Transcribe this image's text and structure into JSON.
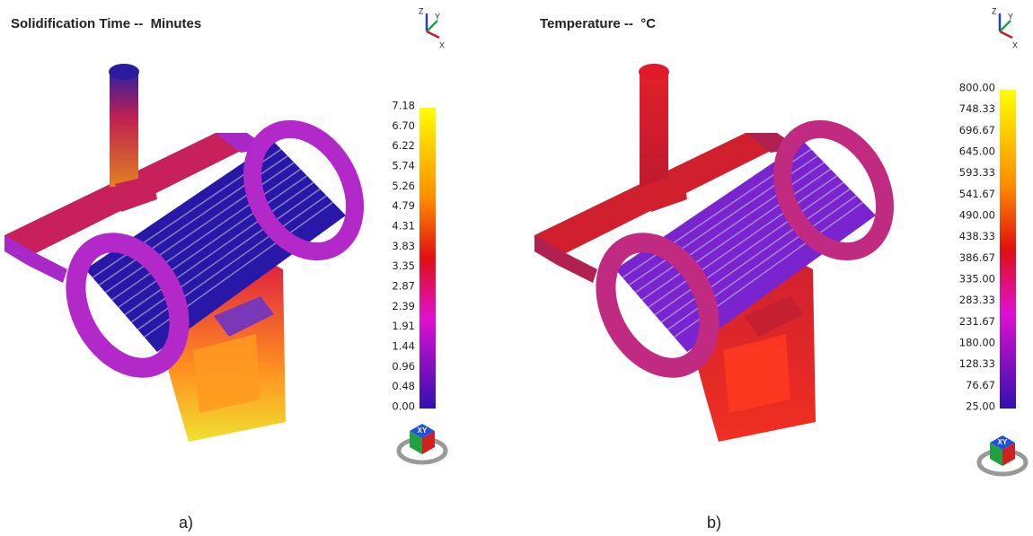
{
  "panels": [
    {
      "title": "Solidification Time --  Minutes",
      "caption": "a)",
      "axes": {
        "z": "Z",
        "y": "Y",
        "x": "X"
      },
      "view_cube": "XY",
      "colorbar": {
        "labels": [
          "7.18",
          "6.70",
          "6.22",
          "5.74",
          "5.26",
          "4.79",
          "4.31",
          "3.83",
          "3.35",
          "2.87",
          "2.39",
          "1.91",
          "1.44",
          "0.96",
          "0.48",
          "0.00"
        ]
      }
    },
    {
      "title": "Temperature --  °C",
      "caption": "b)",
      "axes": {
        "z": "Z",
        "y": "Y",
        "x": "X"
      },
      "view_cube": "XY",
      "colorbar": {
        "labels": [
          "800.00",
          "748.33",
          "696.67",
          "645.00",
          "593.33",
          "541.67",
          "490.00",
          "438.33",
          "386.67",
          "335.00",
          "283.33",
          "231.67",
          "180.00",
          "128.33",
          "76.67",
          "25.00"
        ]
      }
    }
  ]
}
